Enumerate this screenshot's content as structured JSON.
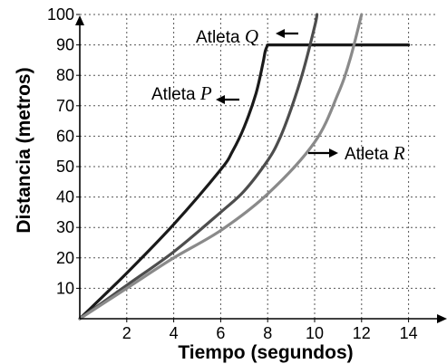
{
  "chart_data": {
    "type": "line",
    "xlabel": "Tiempo (segundos)",
    "ylabel": "Distancia (metros)",
    "xlim": [
      0,
      15.5
    ],
    "ylim": [
      0,
      100
    ],
    "xticks": [
      2,
      4,
      6,
      8,
      10,
      12,
      14
    ],
    "yticks": [
      10,
      20,
      30,
      40,
      50,
      60,
      70,
      80,
      90,
      100
    ],
    "grid": true,
    "series": [
      {
        "name": "Atleta P",
        "color": "#1a1a1a",
        "points": [
          [
            0,
            0
          ],
          [
            2,
            15
          ],
          [
            4,
            31
          ],
          [
            6,
            49
          ],
          [
            6.5,
            55
          ],
          [
            7,
            63
          ],
          [
            7.5,
            74
          ],
          [
            7.8,
            84
          ],
          [
            7.9,
            88
          ],
          [
            8,
            90
          ],
          [
            14,
            90
          ]
        ],
        "label": {
          "prefix": "Atleta ",
          "letter": "P"
        }
      },
      {
        "name": "Atleta Q",
        "color": "#4d4d4d",
        "points": [
          [
            0,
            0
          ],
          [
            2,
            11
          ],
          [
            4,
            22
          ],
          [
            6,
            35
          ],
          [
            7,
            42
          ],
          [
            8,
            52
          ],
          [
            8.5,
            59
          ],
          [
            9,
            69
          ],
          [
            9.5,
            81
          ],
          [
            10,
            96
          ],
          [
            10.1,
            100
          ]
        ],
        "label": {
          "prefix": "Atleta ",
          "letter": "Q"
        }
      },
      {
        "name": "Atleta R",
        "color": "#8a8a8a",
        "points": [
          [
            0,
            0
          ],
          [
            2,
            10
          ],
          [
            4,
            20
          ],
          [
            6,
            29
          ],
          [
            8,
            41
          ],
          [
            10,
            58
          ],
          [
            11,
            74
          ],
          [
            11.5,
            85
          ],
          [
            12,
            100
          ]
        ],
        "label": {
          "prefix": "Atleta ",
          "letter": "R"
        }
      }
    ]
  }
}
